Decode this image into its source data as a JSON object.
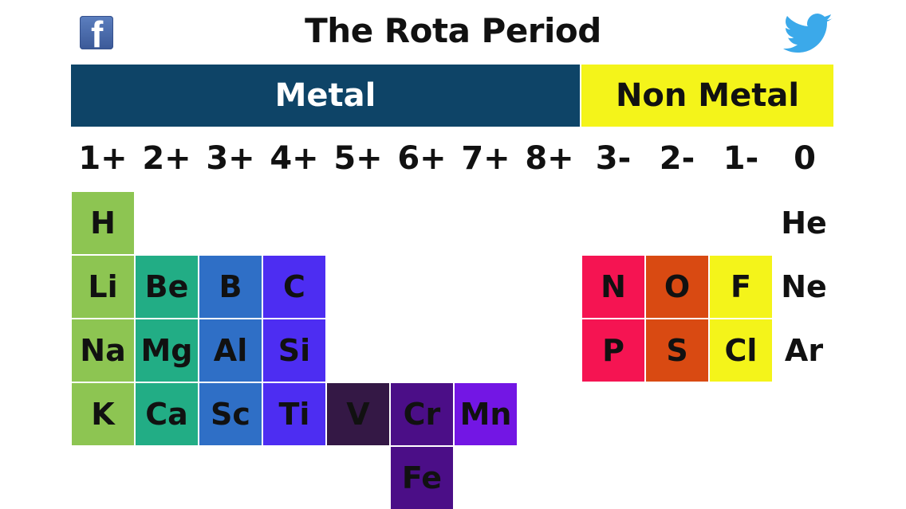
{
  "title": "The Rota Period",
  "icons": {
    "facebook": "facebook-icon",
    "twitter": "twitter-icon",
    "facebook_glyph": "f"
  },
  "categories": {
    "metal": "Metal",
    "non_metal": "Non Metal"
  },
  "colors": {
    "metal_band": "#0e4467",
    "non_metal_band": "#f4f41a",
    "group_1": "#8dc552",
    "group_2": "#22ad85",
    "group_3": "#2f6fc6",
    "group_4": "#4d2df2",
    "group_5": "#341845",
    "group_6": "#4b0e87",
    "group_7": "#7316e4",
    "group_n3": "#f51452",
    "group_n2": "#d94a12",
    "group_n1": "#f4f41a"
  },
  "charges": [
    "1+",
    "2+",
    "3+",
    "4+",
    "5+",
    "6+",
    "7+",
    "8+",
    "3-",
    "2-",
    "1-",
    "0"
  ],
  "elements": {
    "H": "H",
    "He": "He",
    "Li": "Li",
    "Be": "Be",
    "B": "B",
    "C": "C",
    "N": "N",
    "O": "O",
    "F": "F",
    "Ne": "Ne",
    "Na": "Na",
    "Mg": "Mg",
    "Al": "Al",
    "Si": "Si",
    "P": "P",
    "S": "S",
    "Cl": "Cl",
    "Ar": "Ar",
    "K": "K",
    "Ca": "Ca",
    "Sc": "Sc",
    "Ti": "Ti",
    "V": "V",
    "Cr": "Cr",
    "Mn": "Mn",
    "Fe": "Fe"
  }
}
